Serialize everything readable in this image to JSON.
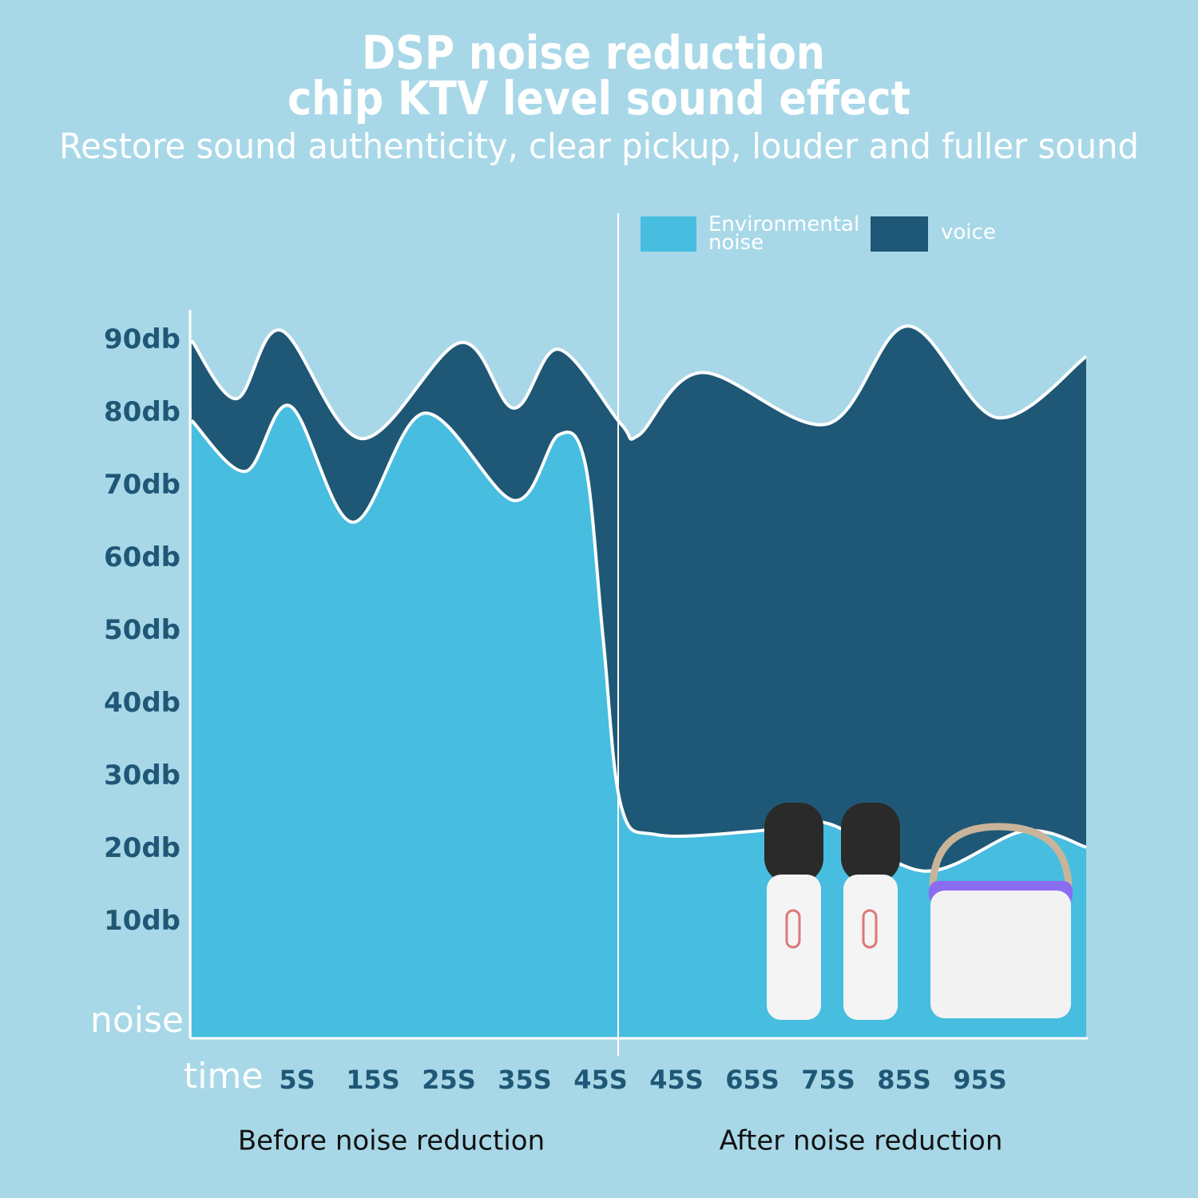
{
  "chart_data": {
    "type": "area",
    "title": [
      "DSP noise reduction",
      "chip KTV level sound effect"
    ],
    "subtitle": "Restore sound authenticity, clear pickup, louder and fuller sound",
    "y_label": "noise",
    "x_label": "time",
    "categories": [
      "5S",
      "15S",
      "25S",
      "35S",
      "45S",
      "45S",
      "65S",
      "75S",
      "85S",
      "95S"
    ],
    "sections": [
      "Before noise reduction",
      "After noise reduction"
    ],
    "xlim": [
      0,
      100
    ],
    "ylim": [
      -6,
      94
    ],
    "yticks": [
      {
        "value": 90,
        "label": "90db"
      },
      {
        "value": 80,
        "label": "80db"
      },
      {
        "value": 70,
        "label": "70db"
      },
      {
        "value": 60,
        "label": "60db"
      },
      {
        "value": 50,
        "label": "50db"
      },
      {
        "value": 40,
        "label": "40db"
      },
      {
        "value": 30,
        "label": "30db"
      },
      {
        "value": 20,
        "label": "20db"
      },
      {
        "value": 10,
        "label": "10db"
      }
    ],
    "series": [
      {
        "name": "voice",
        "color": "#1f5876",
        "x": [
          0,
          5,
          10,
          19,
          30,
          36,
          41,
          48,
          50,
          57,
          71,
          80,
          90,
          100
        ],
        "values": [
          90,
          82,
          91.4,
          76.5,
          89.7,
          80.7,
          88.8,
          78.5,
          77,
          85.6,
          78.5,
          92,
          79.4,
          87.8
        ]
      },
      {
        "name": "Environmental noise",
        "color": "#47bde0",
        "x": [
          0,
          6,
          11,
          18,
          26,
          36,
          41,
          44,
          46,
          48,
          52,
          63,
          71,
          82,
          93,
          100
        ],
        "values": [
          79,
          72,
          81,
          65,
          80,
          68,
          77,
          73,
          49,
          26,
          22,
          22.5,
          23.6,
          17,
          22.5,
          20.3
        ]
      }
    ]
  }
}
